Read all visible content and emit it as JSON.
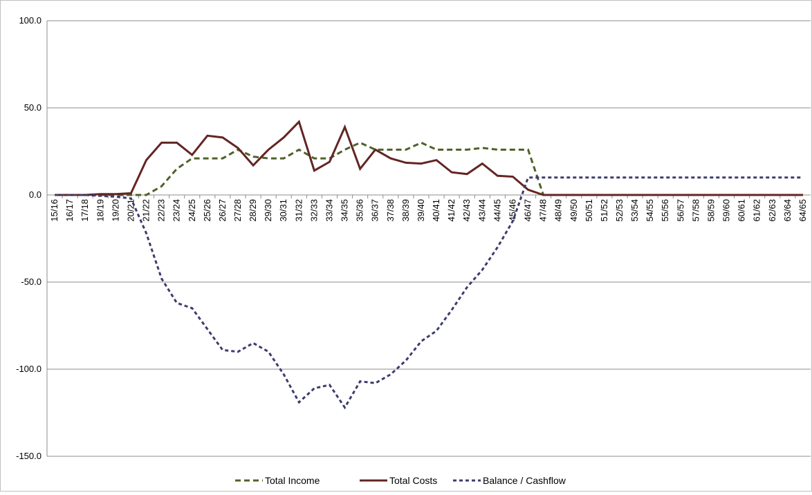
{
  "chart_data": {
    "type": "line",
    "categories": [
      "15/16",
      "16/17",
      "17/18",
      "18/19",
      "19/20",
      "20/21",
      "21/22",
      "22/23",
      "23/24",
      "24/25",
      "25/26",
      "26/27",
      "27/28",
      "28/29",
      "29/30",
      "30/31",
      "31/32",
      "32/33",
      "33/34",
      "34/35",
      "35/36",
      "36/37",
      "37/38",
      "38/39",
      "39/40",
      "40/41",
      "41/42",
      "42/43",
      "43/44",
      "44/45",
      "45/46",
      "46/47",
      "47/48",
      "48/49",
      "49/50",
      "50/51",
      "51/52",
      "52/53",
      "53/54",
      "54/55",
      "55/56",
      "56/57",
      "57/58",
      "58/59",
      "59/60",
      "60/61",
      "61/62",
      "62/63",
      "63/64",
      "64/65"
    ],
    "series": [
      {
        "name": "Total Income",
        "color": "#4f6228",
        "dash": "8,5",
        "values": [
          0,
          0,
          0,
          0,
          0,
          0,
          0,
          5,
          15,
          21,
          21,
          21,
          26,
          22,
          21,
          21,
          26,
          21,
          21,
          26,
          30,
          26,
          26,
          26,
          30,
          26,
          26,
          26,
          27,
          26,
          26,
          26,
          0,
          0,
          0,
          0,
          0,
          0,
          0,
          0,
          0,
          0,
          0,
          0,
          0,
          0,
          0,
          0,
          0,
          0
        ]
      },
      {
        "name": "Total Costs",
        "color": "#632523",
        "dash": "none",
        "values": [
          0,
          0,
          0,
          0.5,
          0.5,
          1,
          20,
          30,
          30,
          23,
          34,
          33,
          27,
          17,
          26,
          33,
          42,
          14,
          19,
          39,
          15,
          26,
          21,
          18.5,
          18,
          20,
          13,
          12,
          18,
          11,
          10.5,
          3,
          0,
          0,
          0,
          0,
          0,
          0,
          0,
          0,
          0,
          0,
          0,
          0,
          0,
          0,
          0,
          0,
          0,
          0
        ]
      },
      {
        "name": "Balance / Cashflow",
        "color": "#3c3c6e",
        "dash": "5,4",
        "values": [
          0,
          0,
          0,
          -0.5,
          -1,
          -2,
          -22,
          -48,
          -62,
          -65,
          -77,
          -89,
          -90,
          -85,
          -90,
          -103,
          -119,
          -111,
          -109,
          -122,
          -107,
          -108,
          -103,
          -95,
          -84,
          -78,
          -66,
          -53,
          -43,
          -30,
          -15,
          10,
          10,
          10,
          10,
          10,
          10,
          10,
          10,
          10,
          10,
          10,
          10,
          10,
          10,
          10,
          10,
          10,
          10,
          10
        ]
      }
    ],
    "ylim": [
      -150,
      100
    ],
    "yticks": [
      {
        "value": -150,
        "label": "-150.0"
      },
      {
        "value": -100,
        "label": "-100.0"
      },
      {
        "value": -50,
        "label": "-50.0"
      },
      {
        "value": 0,
        "label": "0.0"
      },
      {
        "value": 50,
        "label": "50.0"
      },
      {
        "value": 100,
        "label": "100.0"
      }
    ],
    "grid": true,
    "legend": "bottom"
  }
}
